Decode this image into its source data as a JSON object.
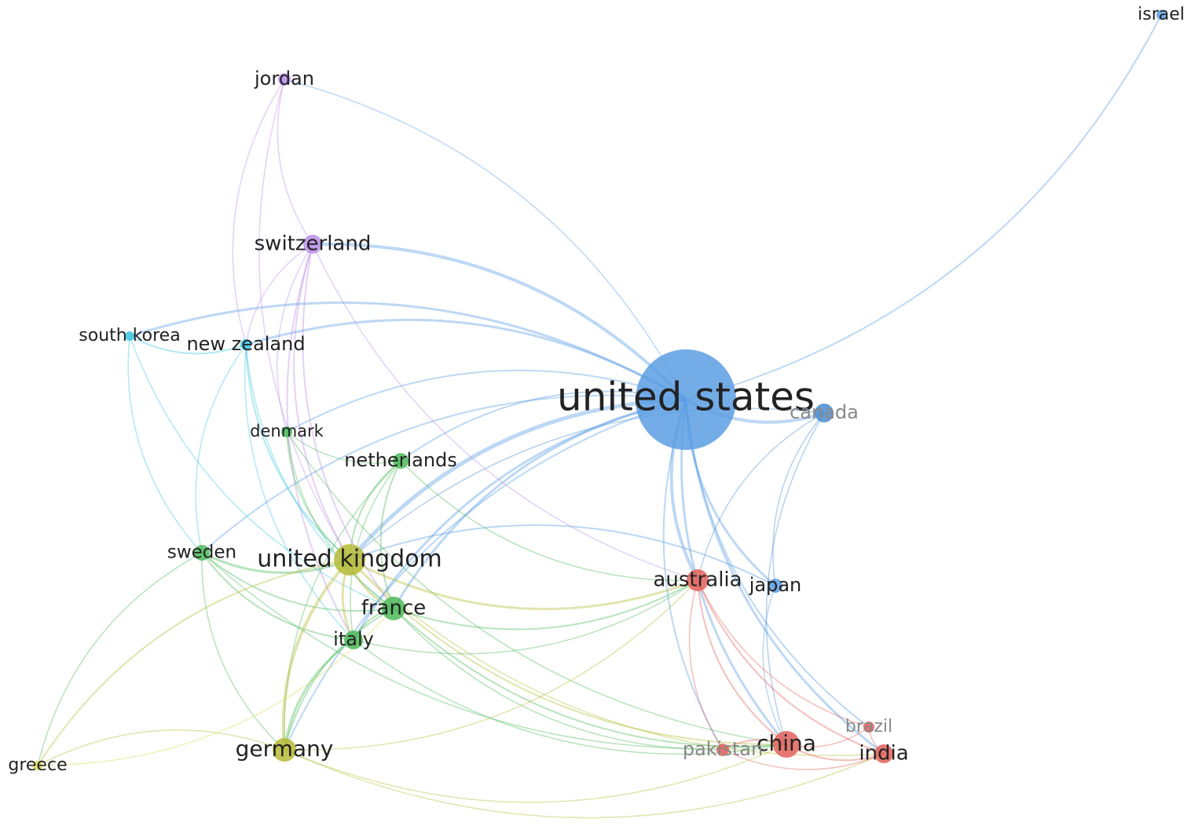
{
  "nodes": [
    {
      "label": "united states"
    },
    {
      "label": "canada"
    },
    {
      "label": "israel"
    },
    {
      "label": "japan"
    },
    {
      "label": "jordan"
    },
    {
      "label": "switzerland"
    },
    {
      "label": "south korea"
    },
    {
      "label": "new zealand"
    },
    {
      "label": "denmark"
    },
    {
      "label": "netherlands"
    },
    {
      "label": "sweden"
    },
    {
      "label": "united kingdom"
    },
    {
      "label": "france"
    },
    {
      "label": "italy"
    },
    {
      "label": "germany"
    },
    {
      "label": "greece"
    },
    {
      "label": "australia"
    },
    {
      "label": "china"
    },
    {
      "label": "pakistan"
    },
    {
      "label": "brazil"
    },
    {
      "label": "india"
    }
  ]
}
